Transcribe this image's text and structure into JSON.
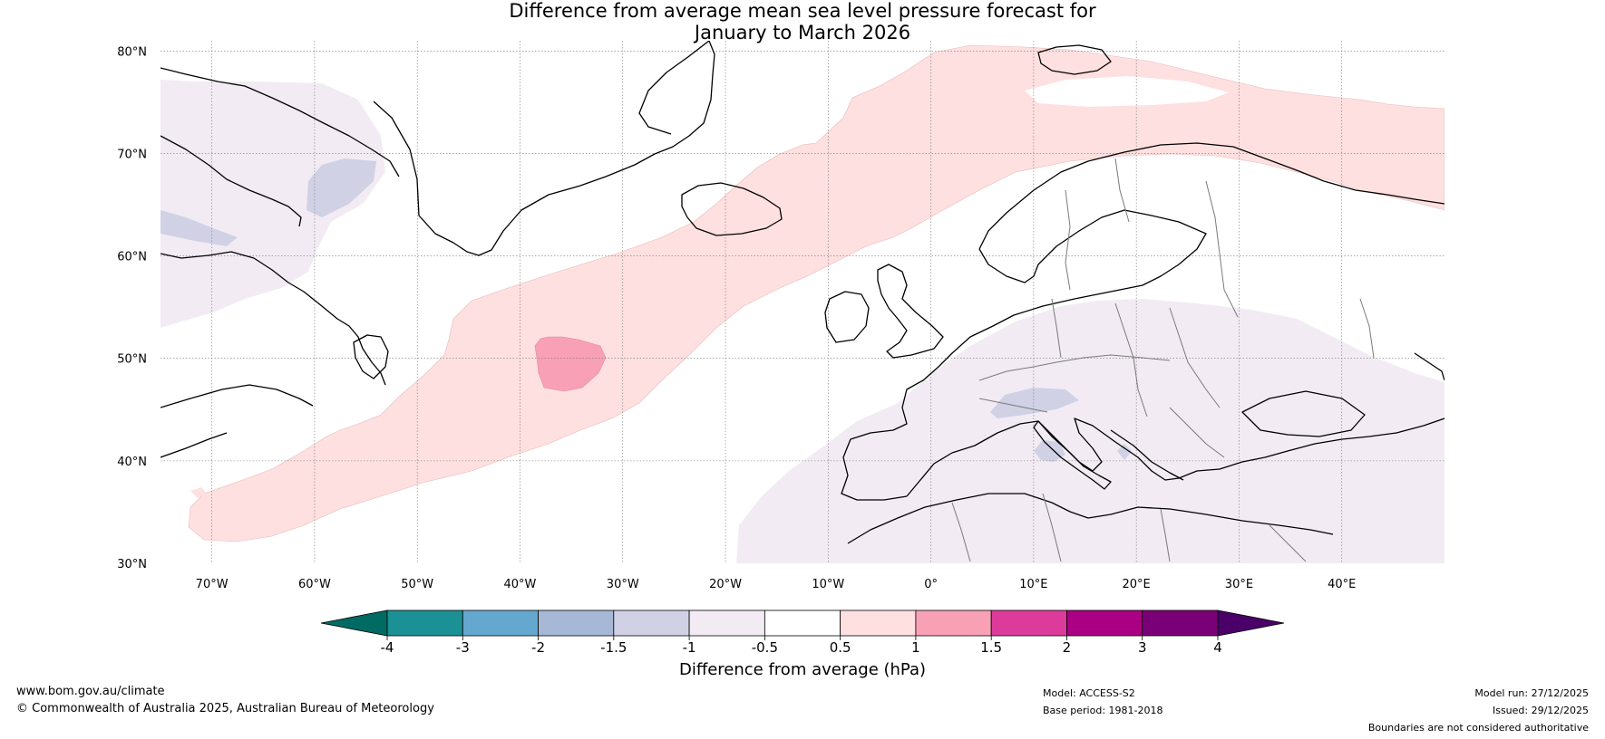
{
  "title": {
    "line1": "Difference from average mean sea level pressure forecast for",
    "line2": "January to March 2026"
  },
  "map": {
    "lat_labels": [
      "80°N",
      "70°N",
      "60°N",
      "50°N",
      "40°N",
      "30°N"
    ],
    "lon_labels": [
      "70°W",
      "60°W",
      "50°W",
      "40°W",
      "30°W",
      "20°W",
      "10°W",
      "0°",
      "10°E",
      "20°E",
      "30°E",
      "40°E"
    ],
    "lat_range": [
      30,
      81
    ],
    "lon_range": [
      -75,
      50
    ]
  },
  "legend": {
    "title": "Difference from average (hPa)",
    "tick_labels": [
      "-4",
      "-3",
      "-2",
      "-1.5",
      "-1",
      "-0.5",
      "0.5",
      "1",
      "1.5",
      "2",
      "3",
      "4"
    ],
    "colors": [
      "#1b9196",
      "#64a8cf",
      "#a7b8d6",
      "#d0d1e5",
      "#f2ebf4",
      "#ffffff",
      "#fde0df",
      "#f8a0b6",
      "#dd3b9c",
      "#ab0083",
      "#7b0077"
    ],
    "under_color": "#006b63",
    "over_color": "#4a0068"
  },
  "footer": {
    "website": "www.bom.gov.au/climate",
    "copyright": "© Commonwealth of Australia 2025, Australian Bureau of Meteorology",
    "model": "Model: ACCESS-S2",
    "base_period": "Base period: 1981-2018",
    "model_run": "Model run: 27/12/2025",
    "issued": "Issued: 29/12/2025",
    "disclaimer": "Boundaries are not considered authoritative"
  }
}
